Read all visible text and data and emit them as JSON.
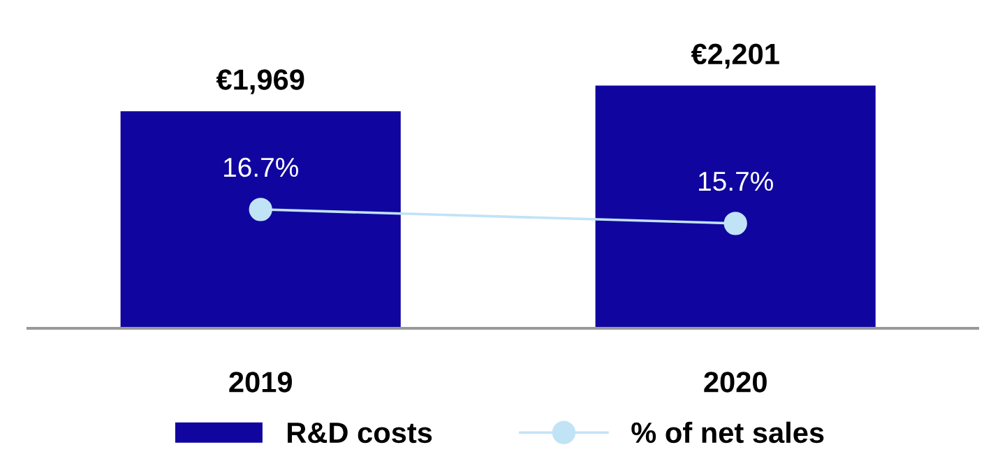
{
  "chart_data": {
    "type": "bar",
    "categories": [
      "2019",
      "2020"
    ],
    "series": [
      {
        "name": "R&D costs",
        "color": "#10069f",
        "values": [
          1969,
          2201
        ],
        "value_labels": [
          "€1,969",
          "€2,201"
        ]
      },
      {
        "name": "% of net sales",
        "type": "line",
        "axis": "y2",
        "color": "#c1e3f6",
        "values": [
          16.7,
          15.7
        ],
        "value_labels": [
          "16.7%",
          "15.7%"
        ],
        "marker": "circle"
      }
    ],
    "tick_labels": "x",
    "grid": false,
    "legend": "bottom"
  }
}
